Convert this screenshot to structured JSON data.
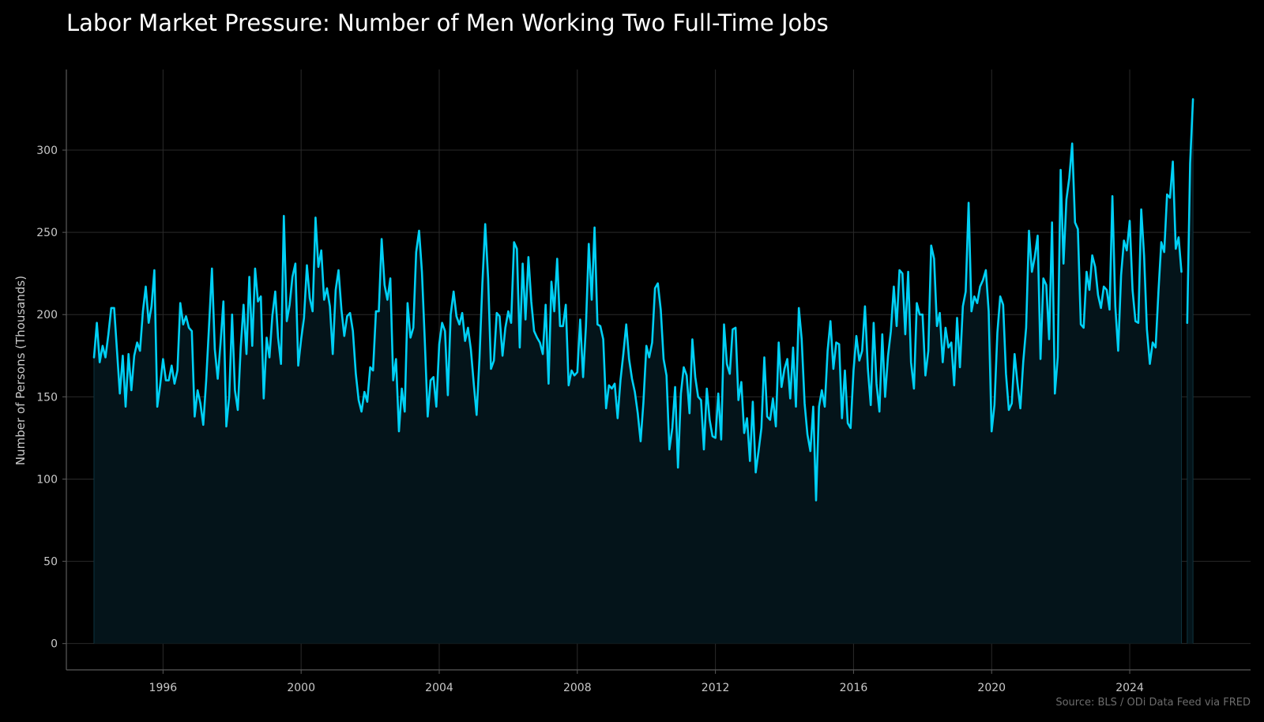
{
  "title": "Labor Market Pressure: Number of Men Working Two Full-Time Jobs",
  "source": "Source: BLS / ODi Data Feed via FRED",
  "colors": {
    "background": "#000000",
    "line": "#00d0f5",
    "fill": "#04141a",
    "grid": "#2a2a2a",
    "axis": "#5a5a5a",
    "text": "#c8c8c8"
  },
  "chart_data": {
    "type": "area",
    "title": "Labor Market Pressure: Number of Men Working Two Full-Time Jobs",
    "xlabel": "",
    "ylabel": "Number of Persons (Thousands)",
    "xlim": [
      1993.2,
      2027.5
    ],
    "ylim": [
      -16,
      349
    ],
    "x_ticks": [
      1996,
      2000,
      2004,
      2008,
      2012,
      2016,
      2020,
      2024
    ],
    "x_tick_labels": [
      "1996",
      "2000",
      "2004",
      "2008",
      "2012",
      "2016",
      "2020",
      "2024"
    ],
    "y_ticks": [
      0,
      50,
      100,
      150,
      200,
      250,
      300
    ],
    "y_tick_labels": [
      "0",
      "50",
      "100",
      "150",
      "200",
      "250",
      "300"
    ],
    "grid": true,
    "legend": "none",
    "series": [
      {
        "x_start": 1994.0,
        "step": 0.08333,
        "values": [
          174,
          195,
          171,
          181,
          174,
          188,
          204,
          204,
          178,
          152,
          175,
          144,
          176,
          154,
          175,
          183,
          178,
          202,
          217,
          195,
          205,
          227,
          144,
          157,
          173,
          160,
          160,
          169,
          158,
          166,
          207,
          194,
          199,
          192,
          190,
          138,
          154,
          146,
          133,
          160,
          193,
          228,
          179,
          161,
          183,
          208,
          132,
          150,
          200,
          154,
          142,
          180,
          206,
          176,
          223,
          181,
          228,
          208,
          211,
          149,
          186,
          174,
          199,
          214,
          186,
          170,
          260,
          196,
          206,
          223,
          231,
          169,
          185,
          198,
          230,
          210,
          202,
          259,
          229,
          239,
          209,
          216,
          205,
          176,
          215,
          227,
          203,
          187,
          199,
          201,
          190,
          164,
          148,
          141,
          153,
          147,
          168,
          166,
          202,
          202,
          246,
          218,
          209,
          222,
          160,
          173,
          129,
          155,
          141,
          207,
          186,
          192,
          238,
          251,
          226,
          183,
          138,
          160,
          162,
          144,
          182,
          195,
          190,
          151,
          200,
          214,
          199,
          194,
          201,
          184,
          192,
          179,
          158,
          139,
          174,
          219,
          255,
          222,
          167,
          172,
          201,
          199,
          175,
          192,
          202,
          195,
          244,
          240,
          180,
          231,
          197,
          235,
          208,
          190,
          186,
          183,
          176,
          206,
          158,
          220,
          202,
          234,
          193,
          193,
          206,
          157,
          166,
          163,
          165,
          197,
          162,
          193,
          243,
          209,
          253,
          194,
          193,
          185,
          143,
          157,
          155,
          158,
          137,
          160,
          176,
          194,
          173,
          161,
          153,
          140,
          123,
          147,
          181,
          174,
          183,
          216,
          219,
          203,
          173,
          163,
          118,
          131,
          156,
          107,
          152,
          168,
          163,
          140,
          185,
          162,
          150,
          148,
          118,
          155,
          136,
          126,
          125,
          152,
          124,
          194,
          170,
          164,
          191,
          192,
          148,
          159,
          128,
          137,
          111,
          147,
          104,
          117,
          131,
          174,
          138,
          136,
          149,
          132,
          183,
          156,
          167,
          173,
          149,
          180,
          144,
          204,
          185,
          146,
          127,
          117,
          144,
          87,
          144,
          154,
          144,
          178,
          196,
          167,
          183,
          182,
          137,
          166,
          134,
          131,
          166,
          187,
          172,
          178,
          205,
          167,
          145,
          195,
          158,
          141,
          188,
          150,
          175,
          190,
          217,
          193,
          227,
          225,
          188,
          226,
          171,
          155,
          207,
          200,
          200,
          163,
          178,
          242,
          234,
          193,
          201,
          171,
          192,
          180,
          183,
          157,
          198,
          168,
          205,
          214,
          268,
          202,
          211,
          207,
          217,
          221,
          227,
          202,
          129,
          145,
          189,
          211,
          206,
          164,
          142,
          146,
          176,
          158,
          143,
          171,
          192,
          251,
          226,
          235,
          248,
          173,
          222,
          218,
          185,
          256,
          152,
          174,
          288,
          231,
          270,
          283,
          304,
          256,
          252,
          194,
          192,
          226,
          215,
          236,
          229,
          212,
          204,
          217,
          215,
          203,
          272,
          205,
          178,
          224,
          245,
          239,
          257,
          215,
          196,
          195,
          264,
          236,
          191,
          170,
          183,
          180,
          214,
          244,
          238,
          273,
          271,
          293,
          240,
          247,
          226,
          null,
          195,
          292,
          331
        ]
      }
    ]
  }
}
